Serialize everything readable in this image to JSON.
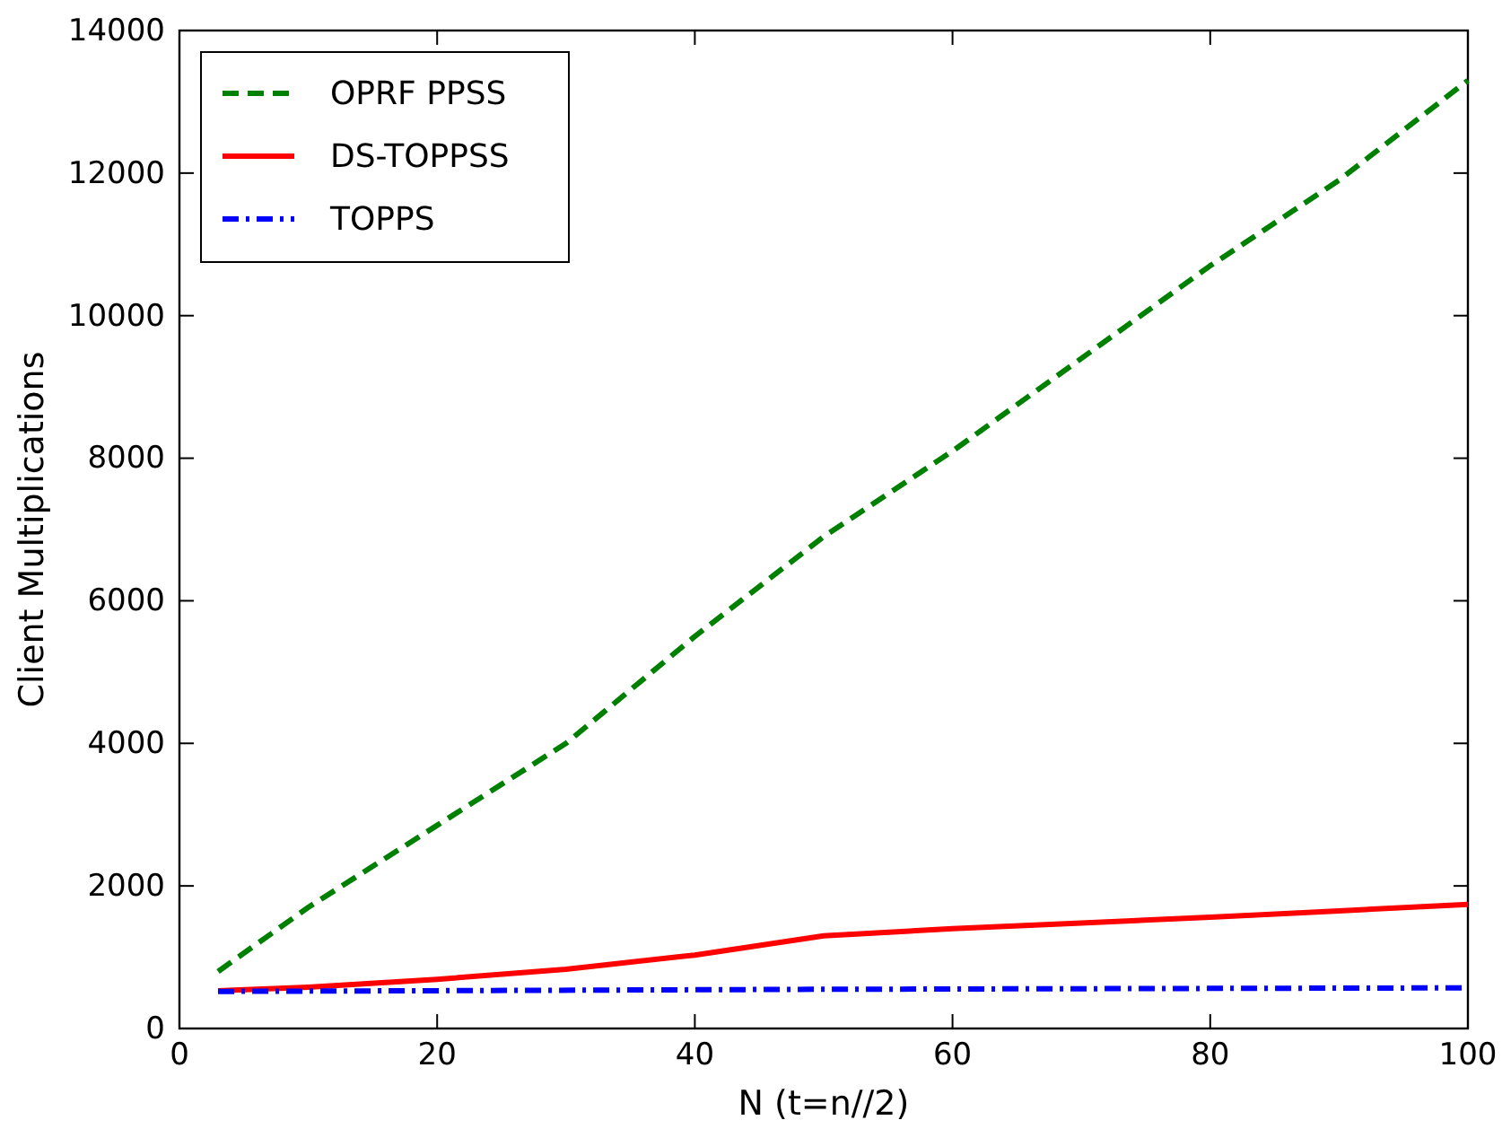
{
  "chart_data": {
    "type": "line",
    "xlabel": "N (t=n//2)",
    "ylabel": "Client Multiplications",
    "xlim": [
      0,
      100
    ],
    "xticks": [
      0,
      20,
      40,
      60,
      80,
      100
    ],
    "ylim": [
      0,
      14000
    ],
    "yticks": [
      0,
      2000,
      4000,
      6000,
      8000,
      10000,
      12000,
      14000
    ],
    "legend": "top left",
    "grid": false,
    "marker": "none",
    "series": [
      {
        "name": "OPRF PPSS",
        "color": "#008000",
        "line_style": "dashed",
        "x": [
          3,
          10,
          20,
          30,
          40,
          50,
          60,
          70,
          80,
          90,
          100
        ],
        "values": [
          800,
          1700,
          2850,
          4000,
          5500,
          6900,
          8100,
          9400,
          10700,
          11900,
          13300
        ]
      },
      {
        "name": "DS-TOPPSS",
        "color": "#ff0000",
        "line_style": "solid",
        "x": [
          3,
          10,
          20,
          30,
          40,
          50,
          60,
          70,
          80,
          90,
          100
        ],
        "values": [
          530,
          580,
          690,
          830,
          1030,
          1300,
          1400,
          1480,
          1560,
          1650,
          1740
        ]
      },
      {
        "name": "TOPPS",
        "color": "#0000ff",
        "line_style": "dotted",
        "x": [
          3,
          20,
          50,
          100
        ],
        "values": [
          520,
          530,
          550,
          570
        ]
      }
    ]
  }
}
